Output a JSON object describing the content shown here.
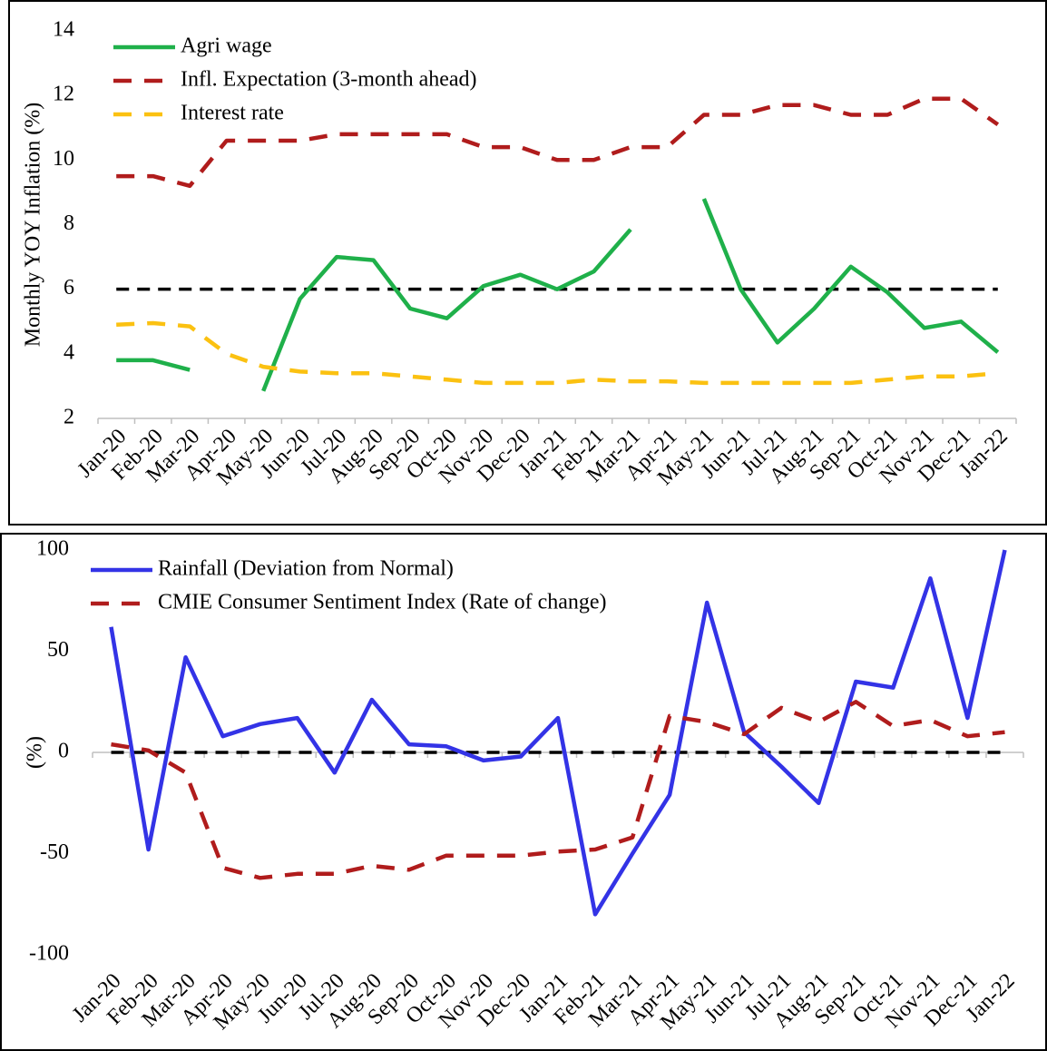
{
  "chart_data": [
    {
      "type": "line",
      "y_label": "Monthly YOY Inflation (%)",
      "categories": [
        "Jan-20",
        "Feb-20",
        "Mar-20",
        "Apr-20",
        "May-20",
        "Jun-20",
        "Jul-20",
        "Aug-20",
        "Sep-20",
        "Oct-20",
        "Nov-20",
        "Dec-20",
        "Jan-21",
        "Feb-21",
        "Mar-21",
        "Apr-21",
        "May-21",
        "Jun-21",
        "Jul-21",
        "Aug-21",
        "Sep-21",
        "Oct-21",
        "Nov-21",
        "Dec-21",
        "Jan-22"
      ],
      "series": [
        {
          "name": "Agri wage",
          "color": "#1fb04a",
          "dash": "solid",
          "values": [
            3.8,
            3.8,
            3.5,
            null,
            2.85,
            5.7,
            7.0,
            6.9,
            5.4,
            5.1,
            6.1,
            6.45,
            6.0,
            6.55,
            7.85,
            null,
            8.8,
            6.0,
            4.35,
            5.4,
            6.7,
            5.9,
            4.8,
            5.0,
            4.05
          ]
        },
        {
          "name": "Infl. Expectation (3-month ahead)",
          "color": "#b01c1c",
          "dash": "dashed",
          "values": [
            9.5,
            9.5,
            9.2,
            10.6,
            10.6,
            10.6,
            10.8,
            10.8,
            10.8,
            10.8,
            10.4,
            10.4,
            10.0,
            10.0,
            10.4,
            10.4,
            11.4,
            11.4,
            11.7,
            11.7,
            11.4,
            11.4,
            11.9,
            11.9,
            11.1
          ]
        },
        {
          "name": "Interest rate",
          "color": "#fbc111",
          "dash": "dashed",
          "values": [
            4.9,
            4.95,
            4.85,
            4.0,
            3.6,
            3.45,
            3.4,
            3.4,
            3.3,
            3.2,
            3.1,
            3.1,
            3.1,
            3.2,
            3.15,
            3.15,
            3.1,
            3.1,
            3.1,
            3.1,
            3.1,
            3.2,
            3.3,
            3.3,
            3.4
          ]
        }
      ],
      "reference_line": 6,
      "ylim": [
        2,
        14
      ],
      "yticks": [
        2,
        4,
        6,
        8,
        10,
        12,
        14
      ],
      "legend": "top-left"
    },
    {
      "type": "line",
      "y_label": "(%)",
      "categories": [
        "Jan-20",
        "Feb-20",
        "Mar-20",
        "Apr-20",
        "May-20",
        "Jun-20",
        "Jul-20",
        "Aug-20",
        "Sep-20",
        "Oct-20",
        "Nov-20",
        "Dec-20",
        "Jan-21",
        "Feb-21",
        "Mar-21",
        "Apr-21",
        "May-21",
        "Jun-21",
        "Jul-21",
        "Aug-21",
        "Sep-21",
        "Oct-21",
        "Nov-21",
        "Dec-21",
        "Jan-22"
      ],
      "series": [
        {
          "name": "Rainfall (Deviation from Normal)",
          "color": "#3333e6",
          "dash": "solid",
          "values": [
            62,
            -48,
            47,
            8,
            14,
            17,
            -10,
            26,
            4,
            3,
            -4,
            -2,
            17,
            -80,
            -50,
            -21,
            74,
            10,
            -7,
            -25,
            35,
            32,
            86,
            17,
            100
          ]
        },
        {
          "name": "CMIE Consumer Sentiment Index (Rate of change)",
          "color": "#b01c1c",
          "dash": "dashed",
          "values": [
            4,
            1,
            -10,
            -57,
            -62,
            -60,
            -60,
            -56,
            -58,
            -51,
            -51,
            -51,
            -49,
            -48,
            -42,
            18,
            15,
            9,
            22,
            15,
            25,
            13,
            16,
            8,
            10
          ]
        }
      ],
      "reference_line": 0,
      "ylim": [
        -100,
        100
      ],
      "yticks": [
        -100,
        -50,
        0,
        50,
        100
      ],
      "legend": "top-left"
    }
  ]
}
